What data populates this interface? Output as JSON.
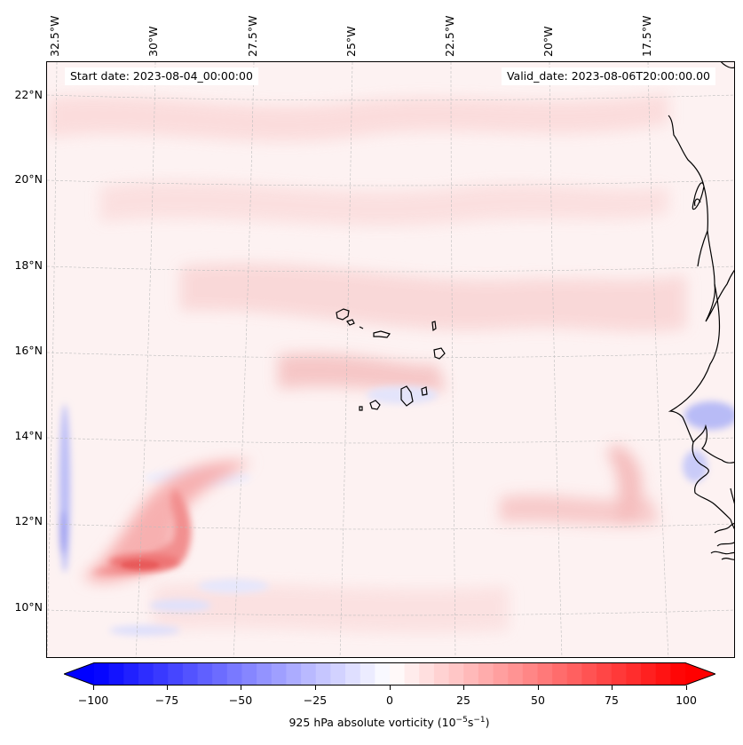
{
  "map": {
    "start_date": "Start date: 2023-08-04_00:00:00",
    "valid_date": "Valid_date: 2023-08-06T20:00:00.00",
    "longitude_labels": [
      "32.5°W",
      "30°W",
      "27.5°W",
      "25°W",
      "22.5°W",
      "20°W",
      "17.5°W"
    ],
    "latitude_labels": [
      "22°N",
      "20°N",
      "18°N",
      "16°N",
      "14°N",
      "12°N",
      "10°N"
    ],
    "field": "925 hPa absolute vorticity",
    "colors": {
      "negative": "#0000ff",
      "neutral": "#ffffff",
      "positive": "#ff0000",
      "coast": "#000000",
      "grid": "#bbbbbb"
    }
  },
  "colorbar": {
    "label_main": "925 hPa absolute vorticity (10",
    "label_exp1": "−5",
    "label_unit": "s",
    "label_exp2": "−1",
    "label_end": ")",
    "min": -100,
    "max": 100,
    "ticks": [
      "−100",
      "−75",
      "−50",
      "−25",
      "0",
      "25",
      "50",
      "75",
      "100"
    ]
  }
}
